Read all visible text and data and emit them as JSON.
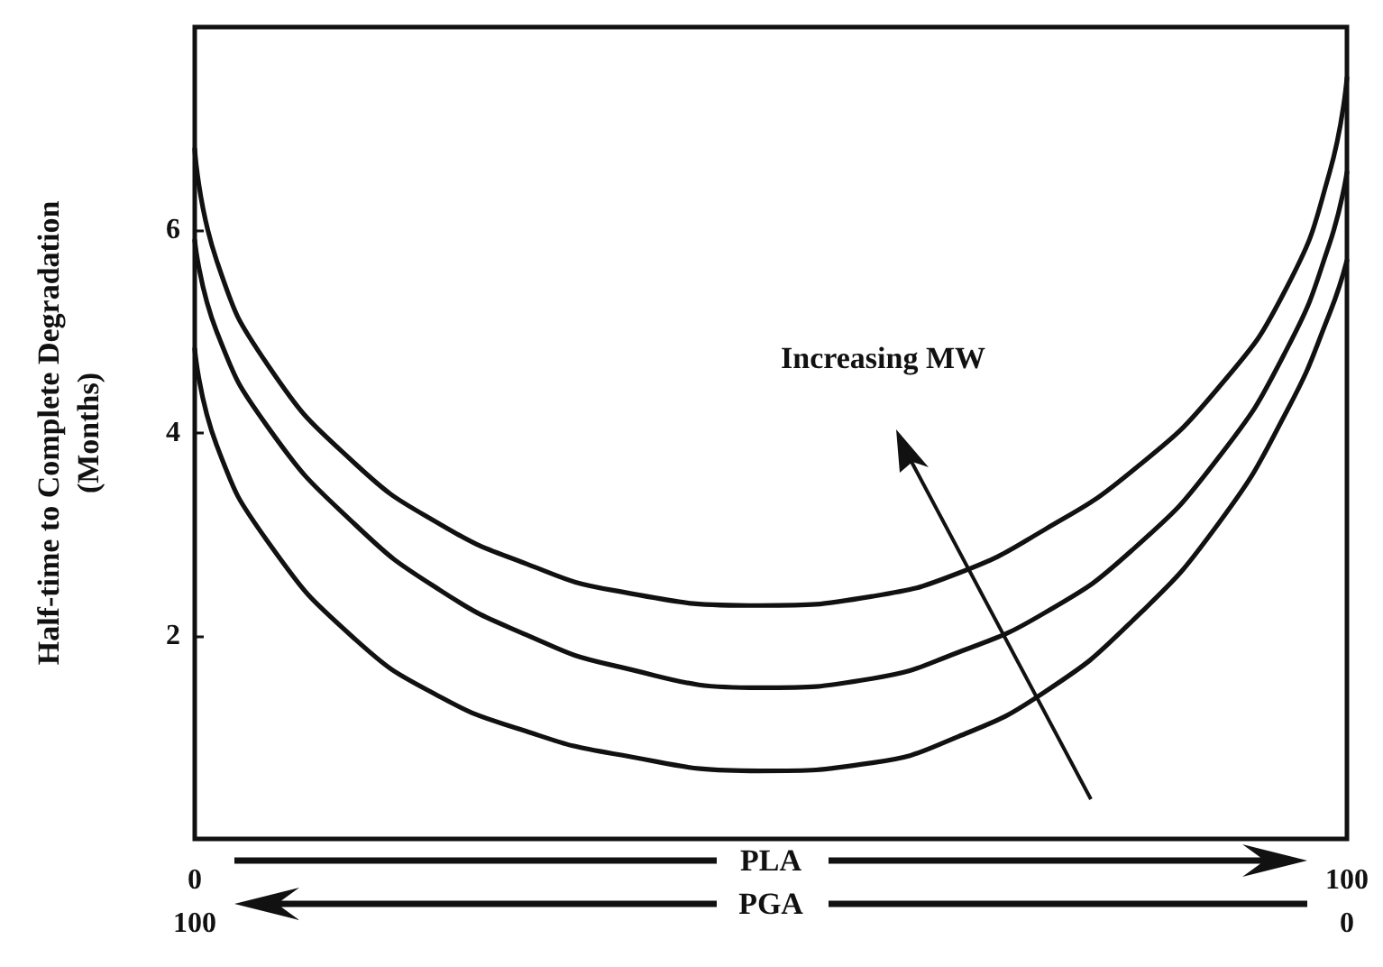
{
  "chart_data": {
    "type": "line",
    "ylabel": "Half-time to Complete Degradation\n(Months)",
    "xlabel": "PLA",
    "x2label": "PGA",
    "xlim": [
      0,
      100
    ],
    "xticks": [
      0,
      100
    ],
    "x2lim": [
      100,
      0
    ],
    "x2ticks": [
      100,
      0
    ],
    "ylim": [
      0,
      8
    ],
    "yticks": [
      2,
      4,
      6
    ],
    "marker": "none",
    "line_style": "solid",
    "grid": false,
    "annotations": [
      "Increasing MW"
    ],
    "series": [
      {
        "color": "#111111",
        "x": [
          0,
          1.9,
          6.4,
          13.9,
          21.3,
          28.8,
          36.3,
          49,
          58.8,
          66.3,
          73.8,
          81.3,
          88.8,
          94.8,
          98.5,
          100
        ],
        "values": [
          6.8,
          5.7,
          4.66,
          3.7,
          3.1,
          2.71,
          2.45,
          2.3,
          2.39,
          2.62,
          3.05,
          3.62,
          4.44,
          5.44,
          6.57,
          7.5
        ]
      },
      {
        "color": "#111111",
        "x": [
          0,
          1.9,
          6.4,
          13.9,
          21.3,
          28.8,
          36.3,
          49,
          58.8,
          66.3,
          73.8,
          81.3,
          88.8,
          94.8,
          98.5,
          100
        ],
        "values": [
          5.9,
          5.0,
          4.05,
          3.1,
          2.45,
          2.01,
          1.71,
          1.49,
          1.58,
          1.84,
          2.23,
          2.84,
          3.75,
          4.83,
          5.87,
          6.57
        ]
      },
      {
        "color": "#111111",
        "x": [
          0,
          1.9,
          6.4,
          13.9,
          21.3,
          28.8,
          36.3,
          49,
          58.8,
          66.3,
          73.8,
          81.3,
          88.8,
          94.8,
          98.5,
          100
        ],
        "values": [
          4.83,
          3.88,
          2.92,
          1.97,
          1.4,
          1.06,
          0.84,
          0.67,
          0.75,
          1.01,
          1.45,
          2.14,
          3.1,
          4.22,
          5.18,
          5.7
        ]
      }
    ]
  }
}
